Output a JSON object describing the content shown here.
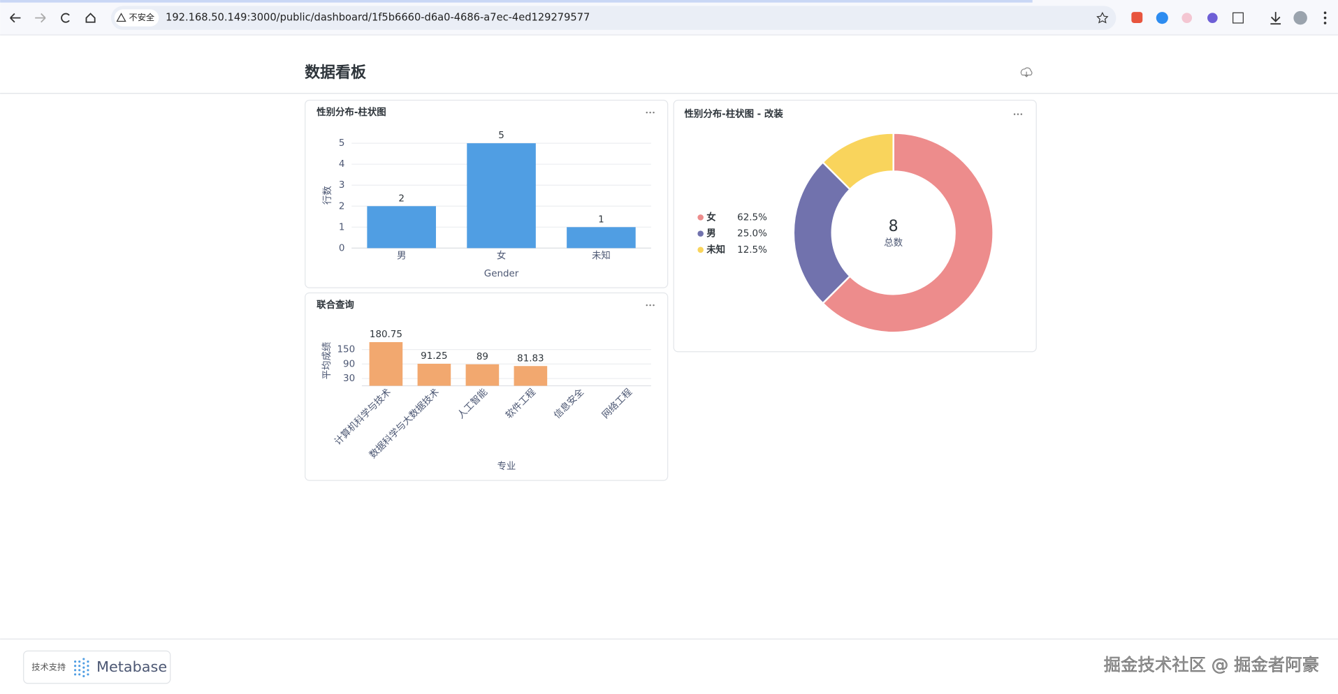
{
  "browser": {
    "security_label": "不安全",
    "url": "192.168.50.149:3000/public/dashboard/1f5b6660-d6a0-4686-a7ec-4ed129279577"
  },
  "dashboard": {
    "title": "数据看板",
    "cards": [
      {
        "title": "性别分布-柱状图",
        "chart_data": {
          "type": "bar",
          "categories": [
            "男",
            "女",
            "未知"
          ],
          "values": [
            2,
            5,
            1
          ],
          "color": "#509ee3",
          "x_label": "Gender",
          "y_label": "行数",
          "ylim": [
            0,
            5
          ],
          "yticks": [
            0,
            1,
            2,
            3,
            4,
            5
          ],
          "grid": true
        }
      },
      {
        "title": "性别分布-柱状图 - 改装",
        "chart_data": {
          "type": "pie",
          "categories": [
            "女",
            "男",
            "未知"
          ],
          "values": [
            62.5,
            25,
            12.5
          ],
          "value_labels": [
            "62.5%",
            "25.0%",
            "12.5%"
          ],
          "colors": [
            "#ed8c8c",
            "#7172ad",
            "#f9d45c"
          ],
          "center_value": 8,
          "center_label": "总数"
        }
      },
      {
        "title": "联合查询",
        "chart_data": {
          "type": "bar",
          "categories": [
            "计算机科学与技术",
            "数据科学与大数据技术",
            "人工智能",
            "软件工程",
            "信息安全",
            "网络工程"
          ],
          "values": [
            180.75,
            91.25,
            89,
            81.83,
            null,
            null
          ],
          "color": "#f2a86f",
          "x_label": "专业",
          "y_label": "平均成绩",
          "ylim": [
            0,
            180
          ],
          "yticks": [
            30,
            90,
            150
          ],
          "grid": true
        }
      }
    ]
  },
  "footer": {
    "powered_by": "技术支持",
    "brand": "Metabase"
  },
  "watermark": "掘金技术社区 @ 掘金者阿豪"
}
